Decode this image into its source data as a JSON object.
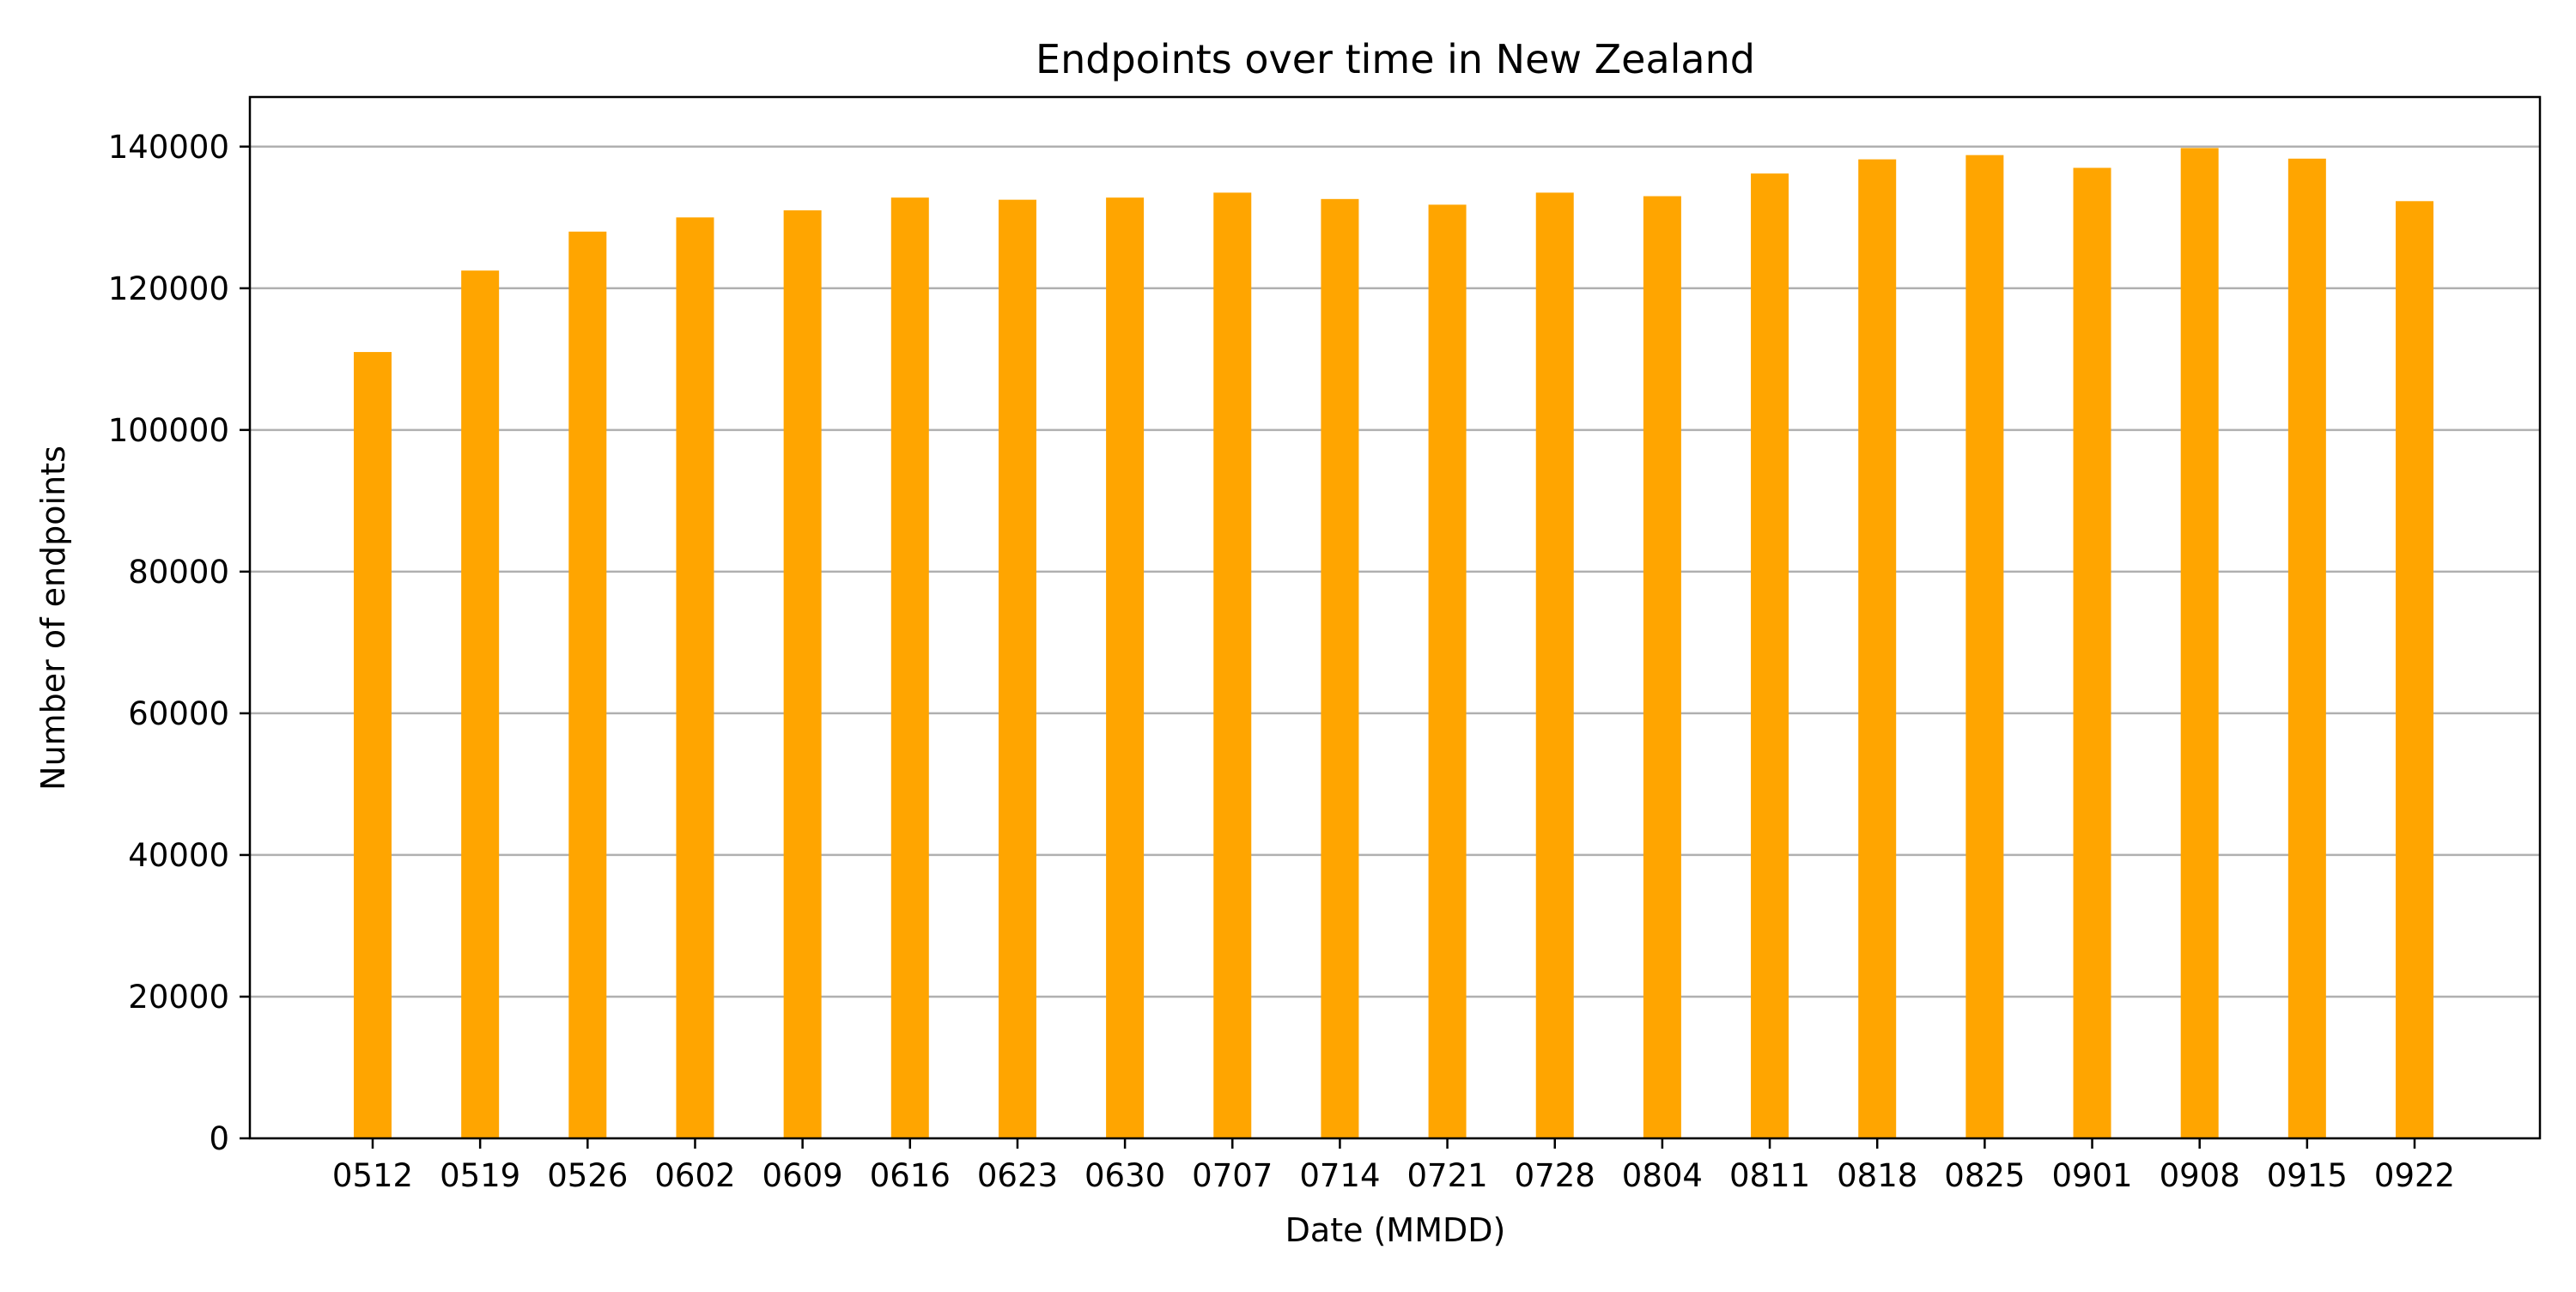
{
  "chart_data": {
    "type": "bar",
    "title": "Endpoints over time in New Zealand",
    "xlabel": "Date (MMDD)",
    "ylabel": "Number of endpoints",
    "categories": [
      "0512",
      "0519",
      "0526",
      "0602",
      "0609",
      "0616",
      "0623",
      "0630",
      "0707",
      "0714",
      "0721",
      "0728",
      "0804",
      "0811",
      "0818",
      "0825",
      "0901",
      "0908",
      "0915",
      "0922"
    ],
    "values": [
      111000,
      122500,
      128000,
      130000,
      131000,
      132800,
      132500,
      132800,
      133500,
      132600,
      131800,
      133500,
      133000,
      136200,
      138200,
      138800,
      137000,
      139800,
      138300,
      132300
    ],
    "ylim": [
      0,
      147000
    ],
    "yticks": [
      0,
      20000,
      40000,
      60000,
      80000,
      100000,
      120000,
      140000
    ],
    "ytick_labels": [
      "0",
      "20000",
      "40000",
      "60000",
      "80000",
      "100000",
      "120000",
      "140000"
    ],
    "grid": "horizontal",
    "bar_color": "#ffa500",
    "grid_color": "#b0b0b0"
  }
}
